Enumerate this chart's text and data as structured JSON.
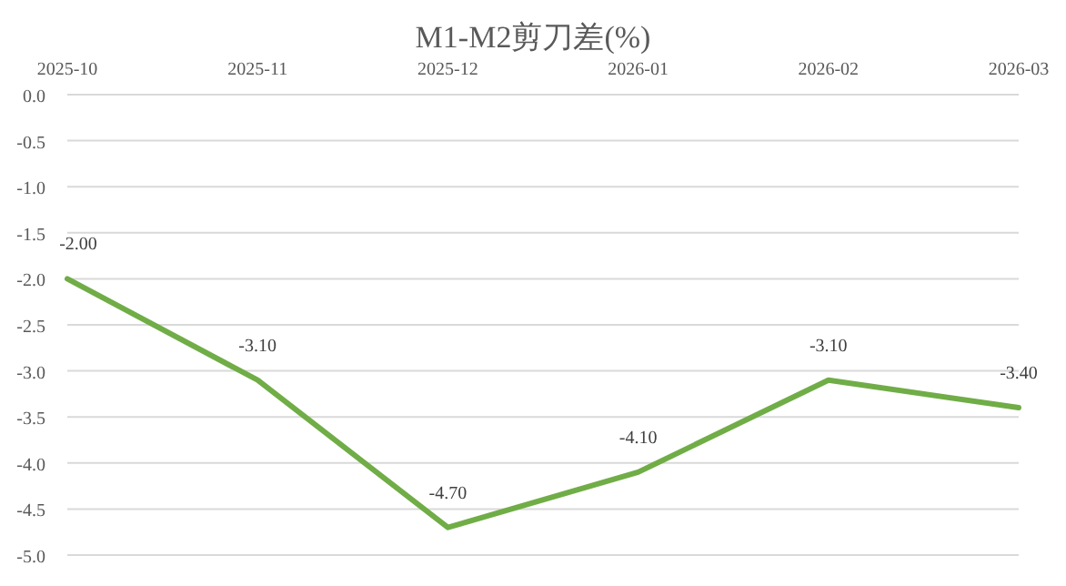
{
  "chart_data": {
    "type": "line",
    "title": "M1-M2剪刀差(%)",
    "categories": [
      "2025-10",
      "2025-11",
      "2025-12",
      "2026-01",
      "2026-02",
      "2026-03"
    ],
    "series": [
      {
        "color": "#70ad47",
        "values": [
          -2.0,
          -3.1,
          -4.7,
          -4.1,
          -3.1,
          -3.4
        ],
        "value_labels": [
          "-2.00",
          "-3.10",
          "-4.70",
          "-4.10",
          "-3.10",
          "-3.40"
        ]
      }
    ],
    "ylim": [
      -5,
      0
    ],
    "yticks": [
      {
        "value": 0,
        "label": "0.0"
      },
      {
        "value": -0.5,
        "label": "-0.5"
      },
      {
        "value": -1,
        "label": "-1.0"
      },
      {
        "value": -1.5,
        "label": "-1.5"
      },
      {
        "value": -2,
        "label": "-2.0"
      },
      {
        "value": -2.5,
        "label": "-2.5"
      },
      {
        "value": -3,
        "label": "-3.0"
      },
      {
        "value": -3.5,
        "label": "-3.5"
      },
      {
        "value": -4,
        "label": "-4.0"
      },
      {
        "value": -4.5,
        "label": "-4.5"
      },
      {
        "value": -5,
        "label": "-5.0"
      }
    ],
    "grid": "y",
    "line_style": "solid"
  }
}
